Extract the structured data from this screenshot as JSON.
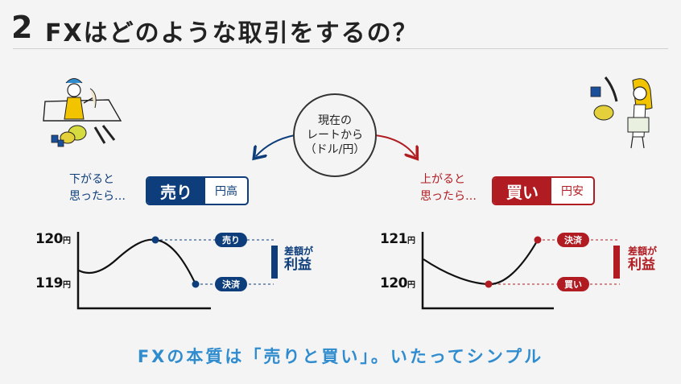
{
  "heading": {
    "number": "2",
    "title": "FXはどのような取引をするの？"
  },
  "center": {
    "lines": [
      "現在の",
      "レートから",
      "（ドル/円）"
    ]
  },
  "sell": {
    "condition_lines": [
      "下がると",
      "思ったら…"
    ],
    "action": "売り",
    "sub": "円高",
    "ticks": [
      {
        "value": "120",
        "unit": "円"
      },
      {
        "value": "119",
        "unit": "円"
      }
    ],
    "open_label": "売り",
    "close_label": "決済",
    "profit_line1": "差額が",
    "profit_line2": "利益",
    "color": "#0d3d7a"
  },
  "buy": {
    "condition_lines": [
      "上がると",
      "思ったら…"
    ],
    "action": "買い",
    "sub": "円安",
    "ticks": [
      {
        "value": "121",
        "unit": "円"
      },
      {
        "value": "120",
        "unit": "円"
      }
    ],
    "open_label": "買い",
    "close_label": "決済",
    "profit_line1": "差額が",
    "profit_line2": "利益",
    "color": "#b01c22"
  },
  "tagline": "FXの本質は「売りと買い」。いたってシンプル",
  "accent_color": "#2f8ccf"
}
